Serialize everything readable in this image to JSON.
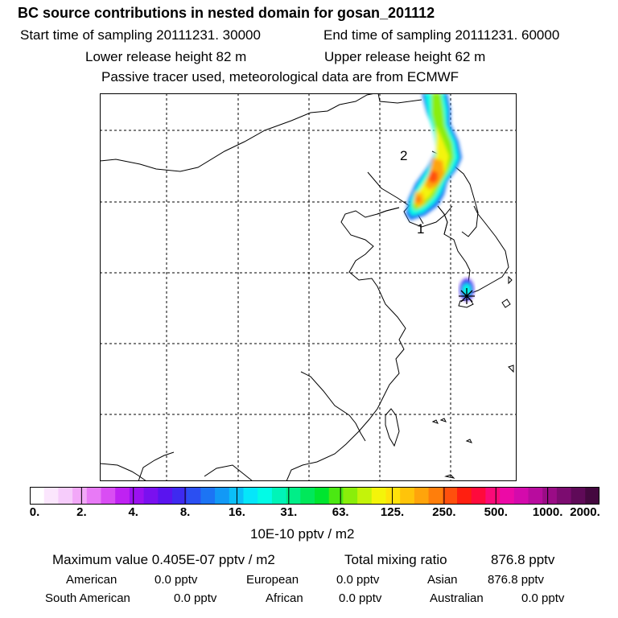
{
  "header": {
    "title": "BC  source contributions in nested domain for gosan_201112",
    "start_time": "Start time of sampling 20111231. 30000",
    "end_time": "End time of sampling 20111231. 60000",
    "lower_release": "Lower release height   82 m",
    "upper_release": "Upper release height   62 m",
    "tracer_note": "Passive tracer used, meteorological data are from ECMWF"
  },
  "map": {
    "label_1": "1",
    "label_2": "2",
    "receptor": "gosan"
  },
  "legend": {
    "colors": [
      "#ffffff",
      "#fbe6fd",
      "#f6ccfb",
      "#f2a8f8",
      "#e87af6",
      "#d94df3",
      "#bf22f2",
      "#9b11f0",
      "#7a10ef",
      "#5a14ef",
      "#3e2af0",
      "#2b4ff2",
      "#1c74f4",
      "#1299f6",
      "#0bbff8",
      "#05e6fa",
      "#02fbe6",
      "#00f4b8",
      "#00ee88",
      "#00e85a",
      "#00e52f",
      "#4be812",
      "#8aee0a",
      "#c4f30a",
      "#f4f40a",
      "#ffe20a",
      "#ffc40a",
      "#ffa40b",
      "#ff7e0b",
      "#ff500d",
      "#ff1f10",
      "#ff0a3c",
      "#fa0a78",
      "#ec0aa6",
      "#d40aac",
      "#b80c9e",
      "#9a0c86",
      "#7c0c70",
      "#5f0a58",
      "#44083f"
    ],
    "ticks": [
      "0.",
      "2.",
      "4.",
      "8.",
      "16.",
      "31.",
      "63.",
      "125.",
      "250.",
      "500.",
      "1000.",
      "2000."
    ],
    "unit": "10E-10 pptv / m2"
  },
  "summary": {
    "max_label": "Maximum value  0.405E-07 pptv / m2",
    "total_label": "Total mixing ratio",
    "total_value": "876.8 pptv",
    "rows": [
      [
        {
          "name": "American",
          "value": "0.0 pptv"
        },
        {
          "name": "European",
          "value": "0.0 pptv"
        },
        {
          "name": "Asian",
          "value": "876.8 pptv"
        }
      ],
      [
        {
          "name": "South American",
          "value": "0.0 pptv"
        },
        {
          "name": "African",
          "value": "0.0 pptv"
        },
        {
          "name": "Australian",
          "value": "0.0 pptv"
        }
      ]
    ]
  }
}
